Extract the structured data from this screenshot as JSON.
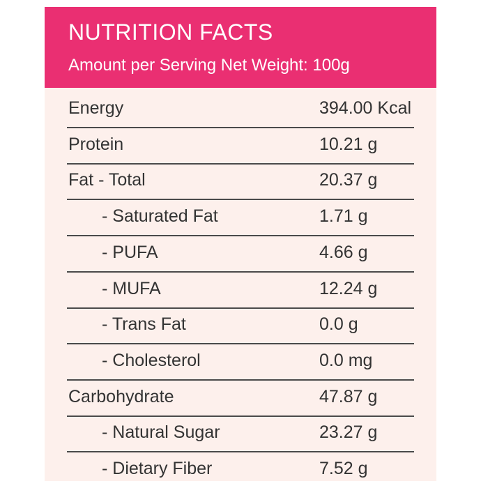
{
  "header": {
    "title": "NUTRITION FACTS",
    "subtitle": "Amount per Serving Net Weight: 100g"
  },
  "table": {
    "rows": [
      [
        "Energy",
        "394.00 Kcal"
      ],
      [
        "Protein",
        "10.21 g"
      ],
      [
        "Fat - Total",
        "20.37 g"
      ],
      [
        "- Saturated Fat",
        "1.71 g"
      ],
      [
        "- PUFA",
        "4.66 g"
      ],
      [
        "- MUFA",
        "12.24 g"
      ],
      [
        "- Trans Fat",
        "0.0 g"
      ],
      [
        "- Cholesterol",
        "0.0 mg"
      ],
      [
        "Carbohydrate",
        "47.87 g"
      ],
      [
        "- Natural Sugar",
        "23.27 g"
      ],
      [
        "- Dietary Fiber",
        "7.52 g"
      ]
    ]
  }
}
